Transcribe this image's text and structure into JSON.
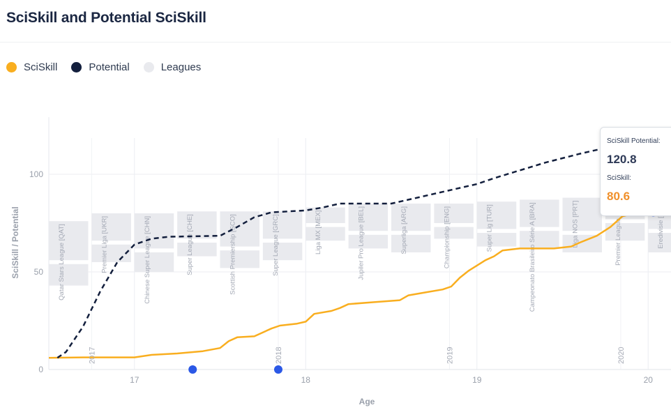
{
  "title": "SciSkill and Potential SciSkill",
  "legend": [
    {
      "label": "SciSkill",
      "color": "#f9ae1f"
    },
    {
      "label": "Potential",
      "color": "#131f3d"
    },
    {
      "label": "Leagues",
      "color": "#e9eaee"
    }
  ],
  "tooltip": {
    "potential_label": "SciSkill Potential:",
    "potential_value": "120.8",
    "sciskill_label": "SciSkill:",
    "sciskill_value": "80.6",
    "potential_color": "#2e3a57",
    "sciskill_color": "#f0902b"
  },
  "chart_data": {
    "type": "line",
    "title": "SciSkill and Potential SciSkill",
    "xlabel": "Age",
    "ylabel": "SciSkill / Potential",
    "xlim": [
      16.5,
      20.2
    ],
    "ylim": [
      0,
      130
    ],
    "x_ticks": [
      17,
      18,
      19,
      20
    ],
    "y_ticks": [
      0,
      50,
      100
    ],
    "year_markers": [
      {
        "label": "2017",
        "x": 16.75
      },
      {
        "label": "2018",
        "x": 17.84
      },
      {
        "label": "2019",
        "x": 18.84
      },
      {
        "label": "2020",
        "x": 19.84
      }
    ],
    "grid": true,
    "series": [
      {
        "name": "SciSkill",
        "color": "#f9ae1f",
        "style": "solid",
        "points": [
          [
            16.5,
            6
          ],
          [
            16.7,
            6.2
          ],
          [
            17.0,
            6.2
          ],
          [
            17.1,
            7.5
          ],
          [
            17.25,
            8.2
          ],
          [
            17.4,
            9.4
          ],
          [
            17.5,
            11
          ],
          [
            17.55,
            14.5
          ],
          [
            17.6,
            16.5
          ],
          [
            17.7,
            17
          ],
          [
            17.8,
            21
          ],
          [
            17.85,
            22.5
          ],
          [
            17.95,
            23.5
          ],
          [
            18.0,
            24.5
          ],
          [
            18.05,
            28.5
          ],
          [
            18.15,
            30
          ],
          [
            18.2,
            31.5
          ],
          [
            18.25,
            33.5
          ],
          [
            18.4,
            34.5
          ],
          [
            18.55,
            35.5
          ],
          [
            18.6,
            38
          ],
          [
            18.7,
            39.5
          ],
          [
            18.8,
            41
          ],
          [
            18.85,
            42.5
          ],
          [
            18.9,
            47
          ],
          [
            18.95,
            50.5
          ],
          [
            19.05,
            56
          ],
          [
            19.1,
            58
          ],
          [
            19.15,
            61
          ],
          [
            19.25,
            62
          ],
          [
            19.45,
            62
          ],
          [
            19.55,
            63
          ],
          [
            19.6,
            65
          ],
          [
            19.7,
            68.5
          ],
          [
            19.78,
            73
          ],
          [
            19.85,
            78.5
          ],
          [
            19.95,
            80.6
          ],
          [
            20.2,
            80.6
          ]
        ]
      },
      {
        "name": "Potential",
        "color": "#131f3d",
        "style": "dashed",
        "points": [
          [
            16.55,
            6
          ],
          [
            16.6,
            9
          ],
          [
            16.7,
            22
          ],
          [
            16.8,
            40
          ],
          [
            16.9,
            55
          ],
          [
            17.0,
            64
          ],
          [
            17.1,
            67
          ],
          [
            17.2,
            68
          ],
          [
            17.5,
            68.5
          ],
          [
            17.6,
            73
          ],
          [
            17.7,
            78
          ],
          [
            17.8,
            80.5
          ],
          [
            18.0,
            81.5
          ],
          [
            18.1,
            83
          ],
          [
            18.2,
            85
          ],
          [
            18.5,
            85
          ],
          [
            18.6,
            87
          ],
          [
            18.8,
            91
          ],
          [
            19.0,
            95
          ],
          [
            19.1,
            98
          ],
          [
            19.25,
            102
          ],
          [
            19.4,
            106
          ],
          [
            19.6,
            110.5
          ],
          [
            19.8,
            114.5
          ],
          [
            19.95,
            118
          ],
          [
            20.03,
            120.8
          ]
        ]
      }
    ],
    "leagues": [
      {
        "label": "Qatar Stars League [QAT]",
        "x": [
          16.5,
          16.73
        ],
        "boxes": [
          [
            43,
            54
          ],
          [
            56,
            76
          ]
        ]
      },
      {
        "label": "Premier Liga [UKR]",
        "x": [
          16.75,
          16.98
        ],
        "boxes": [
          [
            55,
            64
          ],
          [
            66,
            80
          ]
        ]
      },
      {
        "label": "Chinese Super League [CHN]",
        "x": [
          17.0,
          17.23
        ],
        "boxes": [
          [
            50,
            60
          ],
          [
            62,
            80
          ]
        ]
      },
      {
        "label": "Super League [CHE]",
        "x": [
          17.25,
          17.48
        ],
        "boxes": [
          [
            58,
            65
          ],
          [
            67,
            81
          ]
        ]
      },
      {
        "label": "Scottish Premiership [SCO]",
        "x": [
          17.5,
          17.73
        ],
        "boxes": [
          [
            52,
            61
          ],
          [
            63,
            81
          ]
        ]
      },
      {
        "label": "Super League [GRC]",
        "x": [
          17.75,
          17.98
        ],
        "boxes": [
          [
            56,
            65
          ],
          [
            67,
            81
          ]
        ]
      },
      {
        "label": "Liga MX [MEX]",
        "x": [
          18.0,
          18.23
        ],
        "boxes": [
          [
            66,
            73
          ],
          [
            75,
            83
          ]
        ]
      },
      {
        "label": "Jupiler Pro League [BEL]",
        "x": [
          18.25,
          18.48
        ],
        "boxes": [
          [
            62,
            69
          ],
          [
            71,
            85
          ]
        ]
      },
      {
        "label": "Superliga [ARG]",
        "x": [
          18.5,
          18.73
        ],
        "boxes": [
          [
            60,
            69
          ],
          [
            71,
            85
          ]
        ]
      },
      {
        "label": "Championship [ENG]",
        "x": [
          18.75,
          18.98
        ],
        "boxes": [
          [
            67,
            73
          ],
          [
            75,
            85
          ]
        ]
      },
      {
        "label": "Super Lig [TUR]",
        "x": [
          19.0,
          19.23
        ],
        "boxes": [
          [
            63,
            70
          ],
          [
            72,
            86
          ]
        ]
      },
      {
        "label": "Campeonato Brasileiro Série A [BRA]",
        "x": [
          19.25,
          19.48
        ],
        "boxes": [
          [
            62,
            71
          ],
          [
            73,
            87
          ]
        ]
      },
      {
        "label": "Liga NOS [PRT]",
        "x": [
          19.5,
          19.73
        ],
        "boxes": [
          [
            60,
            69
          ],
          [
            71,
            88
          ]
        ]
      },
      {
        "label": "Premier League [ENG]",
        "x": [
          19.75,
          19.98
        ],
        "boxes": [
          [
            66,
            75
          ],
          [
            77,
            89
          ]
        ]
      },
      {
        "label": "Eredivisie [NED]",
        "x": [
          20.0,
          20.23
        ],
        "boxes": [
          [
            60,
            70
          ],
          [
            72,
            88
          ]
        ]
      }
    ],
    "markers": [
      {
        "x": 17.34,
        "y": 0,
        "color": "#2b58e6"
      },
      {
        "x": 17.84,
        "y": 0,
        "color": "#2b58e6"
      },
      {
        "x": 20.03,
        "y": 80.6,
        "color": "#2b58e6"
      },
      {
        "x": 20.03,
        "y": 120.8,
        "color": "#2b58e6"
      }
    ]
  }
}
